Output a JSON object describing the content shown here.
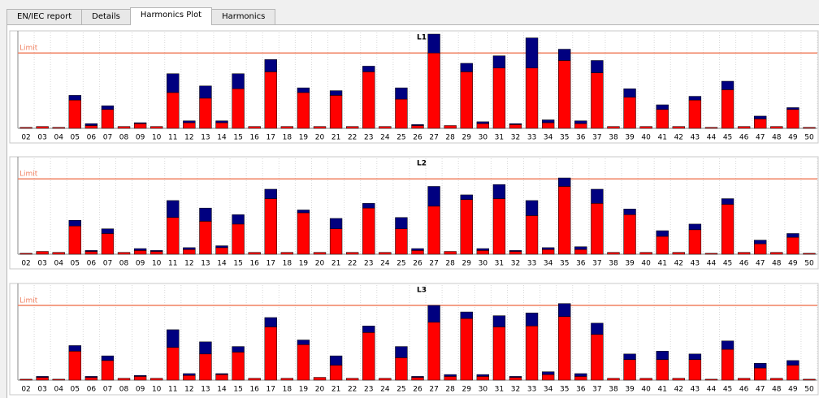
{
  "tabs": [
    "EN/IEC report",
    "Details",
    "Harmonics Plot",
    "Harmonics"
  ],
  "active_tab": 2,
  "chart_data": [
    {
      "type": "bar",
      "stacked": true,
      "title": "L1",
      "categories": [
        "02",
        "03",
        "04",
        "05",
        "06",
        "07",
        "08",
        "09",
        "10",
        "11",
        "12",
        "13",
        "14",
        "15",
        "16",
        "17",
        "18",
        "19",
        "20",
        "21",
        "22",
        "23",
        "24",
        "25",
        "26",
        "27",
        "28",
        "29",
        "30",
        "31",
        "32",
        "33",
        "34",
        "35",
        "36",
        "37",
        "38",
        "39",
        "40",
        "41",
        "42",
        "43",
        "44",
        "45",
        "46",
        "47",
        "48",
        "49",
        "50"
      ],
      "series": [
        {
          "color": "#ff0000",
          "values": [
            1,
            2,
            1,
            30,
            3,
            20,
            2,
            5,
            2,
            38,
            6,
            32,
            6,
            42,
            2,
            60,
            2,
            38,
            2,
            35,
            2,
            60,
            2,
            31,
            3,
            80,
            3,
            60,
            5,
            64,
            4,
            64,
            6,
            72,
            5,
            59,
            2,
            33,
            2,
            20,
            2,
            30,
            1,
            41,
            2,
            10,
            2,
            20,
            1
          ]
        },
        {
          "color": "#000080",
          "values": [
            0,
            0,
            0,
            5,
            2,
            4,
            0,
            1,
            0,
            20,
            2,
            13,
            2,
            16,
            0,
            13,
            0,
            5,
            0,
            5,
            0,
            6,
            0,
            12,
            1,
            20,
            0,
            9,
            2,
            13,
            1,
            32,
            3,
            12,
            3,
            13,
            0,
            9,
            0,
            5,
            0,
            4,
            0,
            9,
            0,
            3,
            0,
            2,
            0
          ]
        }
      ],
      "limit": {
        "label": "Limit",
        "value": 80
      },
      "ylim": [
        0,
        100
      ],
      "grid": true
    },
    {
      "type": "bar",
      "stacked": true,
      "title": "L2",
      "categories": [
        "02",
        "03",
        "04",
        "05",
        "06",
        "07",
        "08",
        "09",
        "10",
        "11",
        "12",
        "13",
        "14",
        "15",
        "16",
        "17",
        "18",
        "19",
        "20",
        "21",
        "22",
        "23",
        "24",
        "25",
        "26",
        "27",
        "28",
        "29",
        "30",
        "31",
        "32",
        "33",
        "34",
        "35",
        "36",
        "37",
        "38",
        "39",
        "40",
        "41",
        "42",
        "43",
        "44",
        "45",
        "46",
        "47",
        "48",
        "49",
        "50"
      ],
      "series": [
        {
          "color": "#ff0000",
          "values": [
            1,
            3,
            2,
            30,
            3,
            22,
            2,
            4,
            3,
            39,
            5,
            35,
            7,
            32,
            2,
            59,
            2,
            44,
            2,
            27,
            2,
            49,
            2,
            27,
            4,
            51,
            3,
            58,
            4,
            59,
            3,
            41,
            5,
            72,
            5,
            54,
            2,
            42,
            2,
            19,
            2,
            26,
            1,
            53,
            2,
            11,
            2,
            18,
            1
          ]
        },
        {
          "color": "#000080",
          "values": [
            0,
            0,
            0,
            6,
            1,
            5,
            0,
            2,
            1,
            18,
            2,
            14,
            2,
            10,
            0,
            10,
            0,
            3,
            0,
            11,
            0,
            5,
            0,
            12,
            2,
            21,
            0,
            5,
            2,
            15,
            1,
            16,
            2,
            9,
            3,
            15,
            0,
            6,
            0,
            6,
            0,
            6,
            0,
            6,
            0,
            4,
            0,
            4,
            0
          ]
        }
      ],
      "limit": {
        "label": "Limit",
        "value": 80
      },
      "ylim": [
        0,
        100
      ],
      "grid": true
    },
    {
      "type": "bar",
      "stacked": true,
      "title": "L3",
      "categories": [
        "02",
        "03",
        "04",
        "05",
        "06",
        "07",
        "08",
        "09",
        "10",
        "11",
        "12",
        "13",
        "14",
        "15",
        "16",
        "17",
        "18",
        "19",
        "20",
        "21",
        "22",
        "23",
        "24",
        "25",
        "26",
        "27",
        "28",
        "29",
        "30",
        "31",
        "32",
        "33",
        "34",
        "35",
        "36",
        "37",
        "38",
        "39",
        "40",
        "41",
        "42",
        "43",
        "44",
        "45",
        "46",
        "47",
        "48",
        "49",
        "50"
      ],
      "series": [
        {
          "color": "#ff0000",
          "values": [
            1,
            3,
            1,
            31,
            3,
            21,
            2,
            4,
            2,
            35,
            5,
            28,
            6,
            30,
            2,
            57,
            2,
            38,
            3,
            16,
            2,
            51,
            2,
            24,
            3,
            62,
            4,
            66,
            4,
            57,
            3,
            58,
            6,
            68,
            4,
            49,
            2,
            22,
            2,
            22,
            2,
            22,
            1,
            33,
            2,
            13,
            2,
            16,
            1
          ]
        },
        {
          "color": "#000080",
          "values": [
            0,
            1,
            0,
            6,
            1,
            5,
            0,
            1,
            0,
            19,
            2,
            13,
            1,
            6,
            0,
            10,
            0,
            5,
            0,
            10,
            0,
            7,
            0,
            12,
            1,
            18,
            2,
            7,
            2,
            12,
            1,
            14,
            3,
            14,
            3,
            12,
            0,
            6,
            0,
            9,
            0,
            6,
            0,
            9,
            0,
            5,
            0,
            5,
            0
          ]
        }
      ],
      "limit": {
        "label": "Limit",
        "value": 80
      },
      "ylim": [
        0,
        100
      ],
      "grid": true
    }
  ]
}
